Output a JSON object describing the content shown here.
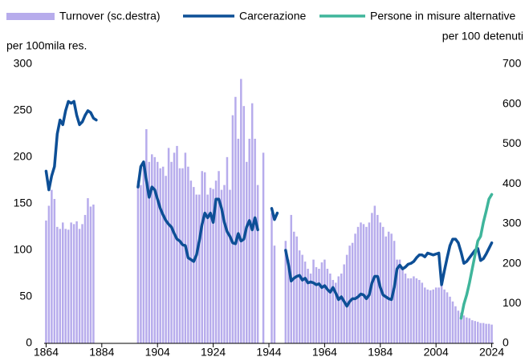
{
  "chart_data": {
    "type": "bar-line",
    "y_label": "per 100mila res.",
    "y2_note": "per 100 detenuti",
    "x": [
      1864,
      1865,
      1866,
      1867,
      1868,
      1869,
      1870,
      1871,
      1872,
      1873,
      1874,
      1875,
      1876,
      1877,
      1878,
      1879,
      1880,
      1881,
      1882,
      1883,
      1884,
      1885,
      1886,
      1887,
      1888,
      1889,
      1890,
      1891,
      1892,
      1893,
      1894,
      1895,
      1896,
      1897,
      1898,
      1899,
      1900,
      1901,
      1902,
      1903,
      1904,
      1905,
      1906,
      1907,
      1908,
      1909,
      1910,
      1911,
      1912,
      1913,
      1914,
      1915,
      1916,
      1917,
      1918,
      1919,
      1920,
      1921,
      1922,
      1923,
      1924,
      1925,
      1926,
      1927,
      1928,
      1929,
      1930,
      1931,
      1932,
      1933,
      1934,
      1935,
      1936,
      1937,
      1938,
      1939,
      1940,
      1941,
      1942,
      1943,
      1944,
      1945,
      1946,
      1947,
      1948,
      1949,
      1950,
      1951,
      1952,
      1953,
      1954,
      1955,
      1956,
      1957,
      1958,
      1959,
      1960,
      1961,
      1962,
      1963,
      1964,
      1965,
      1966,
      1967,
      1968,
      1969,
      1970,
      1971,
      1972,
      1973,
      1974,
      1975,
      1976,
      1977,
      1978,
      1979,
      1980,
      1981,
      1982,
      1983,
      1984,
      1985,
      1986,
      1987,
      1988,
      1989,
      1990,
      1991,
      1992,
      1993,
      1994,
      1995,
      1996,
      1997,
      1998,
      1999,
      2000,
      2001,
      2002,
      2003,
      2004,
      2005,
      2006,
      2007,
      2008,
      2009,
      2010,
      2011,
      2012,
      2013,
      2014,
      2015,
      2016,
      2017,
      2018,
      2019,
      2020,
      2021,
      2022,
      2023,
      2024
    ],
    "series": [
      {
        "name": "Turnover (sc.destra)",
        "kind": "bar",
        "axis": "y2",
        "color": "#b7acec",
        "values": [
          308,
          345,
          385,
          362,
          292,
          287,
          303,
          287,
          285,
          303,
          299,
          306,
          287,
          299,
          322,
          364,
          343,
          348,
          null,
          null,
          null,
          null,
          null,
          null,
          null,
          null,
          null,
          null,
          null,
          null,
          null,
          null,
          null,
          408,
          397,
          443,
          537,
          455,
          474,
          467,
          455,
          439,
          443,
          420,
          490,
          455,
          478,
          495,
          439,
          439,
          478,
          443,
          408,
          392,
          373,
          373,
          432,
          429,
          373,
          390,
          387,
          408,
          432,
          385,
          397,
          467,
          385,
          572,
          618,
          513,
          663,
          595,
          455,
          513,
          602,
          513,
          397,
          null,
          478,
          null,
          null,
          327,
          245,
          null,
          null,
          null,
          257,
          210,
          322,
          280,
          268,
          233,
          222,
          205,
          187,
          175,
          210,
          191,
          187,
          203,
          210,
          187,
          175,
          159,
          152,
          168,
          175,
          198,
          222,
          245,
          252,
          275,
          292,
          303,
          299,
          292,
          303,
          327,
          345,
          322,
          303,
          292,
          268,
          280,
          275,
          257,
          210,
          210,
          187,
          175,
          163,
          163,
          168,
          163,
          159,
          152,
          140,
          135,
          133,
          135,
          140,
          140,
          175,
          135,
          128,
          117,
          105,
          93,
          82,
          77,
          70,
          65,
          63,
          58,
          56,
          54,
          51,
          51,
          49,
          49,
          47
        ]
      },
      {
        "name": "Carcerazione",
        "kind": "line",
        "color": "#0d4f96",
        "values": [
          185,
          165,
          180,
          190,
          225,
          240,
          235,
          250,
          260,
          258,
          260,
          245,
          235,
          238,
          245,
          250,
          248,
          242,
          240,
          null,
          null,
          null,
          null,
          null,
          null,
          null,
          null,
          null,
          null,
          null,
          null,
          null,
          null,
          168,
          190,
          195,
          175,
          157,
          168,
          165,
          155,
          145,
          138,
          132,
          128,
          125,
          118,
          112,
          110,
          106,
          105,
          92,
          90,
          88,
          95,
          110,
          128,
          140,
          135,
          140,
          130,
          155,
          155,
          145,
          130,
          120,
          115,
          108,
          107,
          118,
          110,
          112,
          125,
          132,
          122,
          135,
          122,
          null,
          null,
          null,
          null,
          145,
          133,
          140,
          null,
          null,
          100,
          85,
          67,
          70,
          72,
          73,
          68,
          70,
          65,
          66,
          65,
          63,
          64,
          60,
          62,
          58,
          55,
          60,
          54,
          47,
          50,
          45,
          40,
          45,
          48,
          48,
          50,
          53,
          52,
          48,
          52,
          65,
          72,
          72,
          60,
          52,
          50,
          48,
          47,
          60,
          80,
          84,
          80,
          82,
          85,
          86,
          88,
          92,
          95,
          95,
          93,
          97,
          96,
          95,
          96,
          97,
          63,
          78,
          92,
          105,
          112,
          112,
          108,
          98,
          86,
          88,
          92,
          96,
          100,
          102,
          89,
          91,
          96,
          102,
          108
        ]
      },
      {
        "name": "Persone in misure alternative",
        "kind": "line",
        "color": "#3fb59b",
        "values": [
          null,
          null,
          null,
          null,
          null,
          null,
          null,
          null,
          null,
          null,
          null,
          null,
          null,
          null,
          null,
          null,
          null,
          null,
          null,
          null,
          null,
          null,
          null,
          null,
          null,
          null,
          null,
          null,
          null,
          null,
          null,
          null,
          null,
          null,
          null,
          null,
          null,
          null,
          null,
          null,
          null,
          null,
          null,
          null,
          null,
          null,
          null,
          null,
          null,
          null,
          null,
          null,
          null,
          null,
          null,
          null,
          null,
          null,
          null,
          null,
          null,
          null,
          null,
          null,
          null,
          null,
          null,
          null,
          null,
          null,
          null,
          null,
          null,
          null,
          null,
          null,
          null,
          null,
          null,
          null,
          null,
          null,
          null,
          null,
          null,
          null,
          null,
          null,
          null,
          null,
          null,
          null,
          null,
          null,
          null,
          null,
          null,
          null,
          null,
          null,
          null,
          null,
          null,
          null,
          null,
          null,
          null,
          null,
          null,
          null,
          null,
          null,
          null,
          null,
          null,
          null,
          null,
          null,
          null,
          null,
          null,
          null,
          null,
          null,
          null,
          null,
          null,
          null,
          null,
          null,
          null,
          null,
          null,
          null,
          null,
          null,
          null,
          null,
          null,
          null,
          null,
          null,
          null,
          null,
          null,
          null,
          null,
          null,
          null,
          27,
          42,
          52,
          65,
          80,
          95,
          110,
          115,
          130,
          142,
          155,
          160
        ]
      }
    ],
    "xlim": [
      1863.3,
      2024.7
    ],
    "xticks": [
      1864,
      1884,
      1904,
      1924,
      1944,
      1964,
      1984,
      2004,
      2024
    ],
    "ylim": [
      0,
      300
    ],
    "yticks": [
      0,
      50,
      100,
      150,
      200,
      250,
      300
    ],
    "y2lim": [
      0,
      700
    ],
    "y2ticks": [
      0,
      100,
      200,
      300,
      400,
      500,
      600,
      700
    ]
  }
}
